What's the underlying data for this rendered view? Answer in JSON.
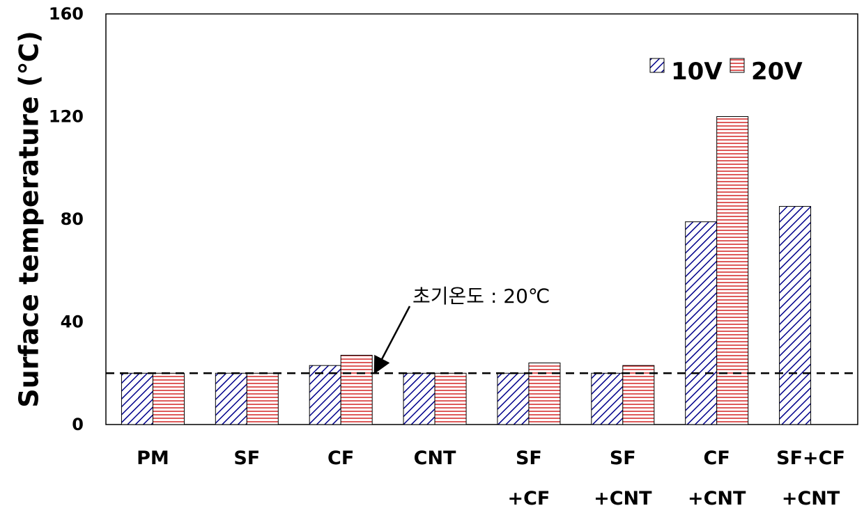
{
  "chart_data": {
    "type": "bar",
    "ylabel": "Surface temperature (℃)",
    "xlabel": "",
    "ylim": [
      0,
      160
    ],
    "yticks": [
      "0",
      "40",
      "80",
      "120",
      "160"
    ],
    "categories": [
      [
        "PM"
      ],
      [
        "SF"
      ],
      [
        "CF"
      ],
      [
        "CNT"
      ],
      [
        "SF",
        "+CF"
      ],
      [
        "SF",
        "+CNT"
      ],
      [
        "CF",
        "+CNT"
      ],
      [
        "SF+CF",
        "+CNT"
      ]
    ],
    "series": [
      {
        "name": "10V",
        "color": "#00008b",
        "pattern": "diagonal",
        "values": [
          20,
          20,
          23,
          20,
          20,
          20,
          79,
          85
        ]
      },
      {
        "name": "20V",
        "color": "#cc0000",
        "pattern": "horizontal",
        "values": [
          20,
          20,
          27,
          20,
          24,
          23,
          120,
          null
        ]
      }
    ],
    "reference_line": {
      "value": 20,
      "style": "dashed"
    },
    "annotation": {
      "text": "초기온도 : 20℃",
      "points_to_value": 20
    },
    "legend": "top-right",
    "grid": false
  }
}
